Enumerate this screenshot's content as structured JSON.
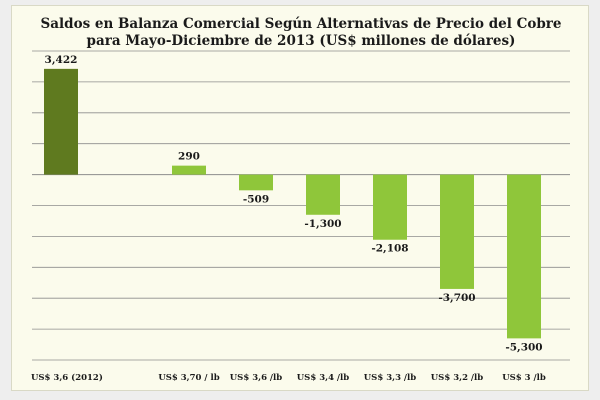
{
  "chart_data": {
    "type": "bar",
    "title_lines": [
      "Saldos en Balanza Comercial Según Alternativas de Precio del Cobre",
      "para Mayo-Diciembre de 2013 (US$ millones de dólares)"
    ],
    "categories": [
      "US$ 3,6 (2012)",
      "US$ 3,70 / lb",
      "US$ 3,6 /lb",
      "US$ 3,4 /lb",
      "US$ 3,3 /lb",
      "US$ 3,2 /lb",
      "US$ 3 /lb"
    ],
    "values": [
      3422,
      290,
      -509,
      -1300,
      -2108,
      -3700,
      -5300
    ],
    "value_labels": [
      "3,422",
      "290",
      "-509",
      "-1,300",
      "-2,108",
      "-3,700",
      "-5,300"
    ],
    "ylim": [
      -6000,
      4000
    ],
    "grid": true,
    "legend": "none",
    "colors": {
      "first_bar": "#5f7a1f",
      "other_bars": "#8fc63a",
      "gridline": "#8c8c8c",
      "background": "#fbfbec"
    }
  }
}
